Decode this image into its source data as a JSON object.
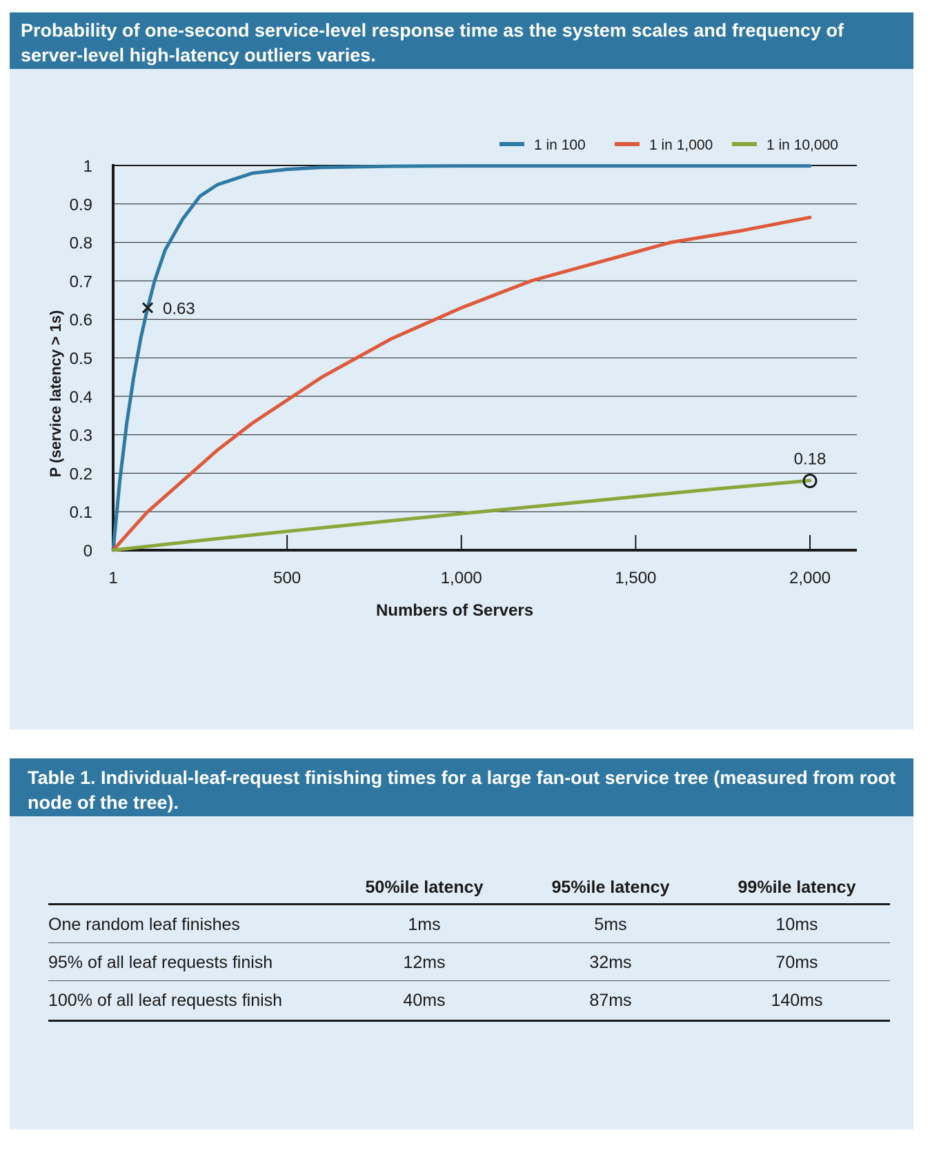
{
  "figure": {
    "caption": "Probability of one-second service-level response time as the system scales and frequency of server-level high-latency outliers varies."
  },
  "chart_data": {
    "type": "line",
    "xlabel": "Numbers of Servers",
    "ylabel": "P (service latency > 1s)",
    "xlim": [
      1,
      2000
    ],
    "ylim": [
      0,
      1
    ],
    "x_ticks": [
      1,
      500,
      1000,
      1500,
      2000
    ],
    "x_tick_labels": [
      "1",
      "500",
      "1,000",
      "1,500",
      "2,000"
    ],
    "y_ticks": [
      0,
      0.1,
      0.2,
      0.3,
      0.4,
      0.5,
      0.6,
      0.7,
      0.8,
      0.9,
      1
    ],
    "y_tick_labels": [
      "0",
      "0.1",
      "0.2",
      "0.3",
      "0.4",
      "0.5",
      "0.6",
      "0.7",
      "0.8",
      "0.9",
      "1"
    ],
    "grid": "horizontal",
    "legend_position": "top-right",
    "series": [
      {
        "name": "1 in 100",
        "color": "#2e7aa4",
        "x": [
          1,
          20,
          40,
          60,
          80,
          100,
          120,
          150,
          200,
          250,
          300,
          400,
          500,
          600,
          800,
          1000,
          1500,
          2000
        ],
        "y": [
          0.0,
          0.18,
          0.33,
          0.45,
          0.55,
          0.63,
          0.7,
          0.78,
          0.86,
          0.92,
          0.95,
          0.98,
          0.99,
          0.995,
          0.998,
          0.999,
          0.999,
          0.999
        ]
      },
      {
        "name": "1 in 1,000",
        "color": "#de5a3c",
        "x": [
          1,
          50,
          100,
          200,
          300,
          400,
          500,
          600,
          700,
          800,
          900,
          1000,
          1200,
          1400,
          1600,
          1800,
          2000
        ],
        "y": [
          0.0,
          0.05,
          0.1,
          0.18,
          0.26,
          0.33,
          0.39,
          0.45,
          0.5,
          0.55,
          0.59,
          0.63,
          0.7,
          0.75,
          0.8,
          0.83,
          0.865
        ]
      },
      {
        "name": "1 in 10,000",
        "color": "#8ba63a",
        "x": [
          1,
          250,
          500,
          750,
          1000,
          1250,
          1500,
          1750,
          2000
        ],
        "y": [
          0.0,
          0.025,
          0.049,
          0.072,
          0.095,
          0.117,
          0.139,
          0.161,
          0.181
        ]
      }
    ],
    "annotations": [
      {
        "text": "0.63",
        "x": 100,
        "y": 0.63,
        "marker": "x"
      },
      {
        "text": "0.18",
        "x": 2000,
        "y": 0.18,
        "marker": "circle"
      }
    ]
  },
  "table": {
    "caption": "Table 1. Individual-leaf-request finishing times for a large fan-out service tree (measured from root node of the tree).",
    "columns": [
      "50%ile latency",
      "95%ile latency",
      "99%ile latency"
    ],
    "rows": [
      {
        "label": "One random leaf finishes",
        "values": [
          "1ms",
          "5ms",
          "10ms"
        ]
      },
      {
        "label": "95% of all leaf requests finish",
        "values": [
          "12ms",
          "32ms",
          "70ms"
        ]
      },
      {
        "label": "100% of all leaf requests finish",
        "values": [
          "40ms",
          "87ms",
          "140ms"
        ]
      }
    ]
  }
}
